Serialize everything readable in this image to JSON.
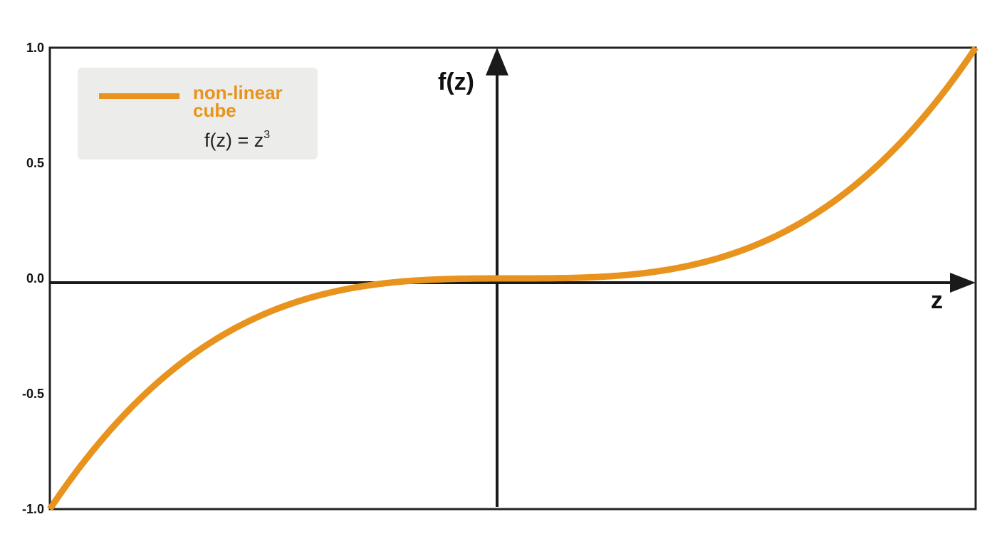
{
  "chart_data": {
    "type": "line",
    "title": "",
    "xlabel": "z",
    "ylabel": "f(z)",
    "ylim": [
      -1.0,
      1.0
    ],
    "xlim": [
      -1.0,
      1.0
    ],
    "y_ticks": [
      "1.0",
      "0.5",
      "0.0",
      "-0.5",
      "-1.0"
    ],
    "y_tick_values": [
      1.0,
      0.5,
      0.0,
      -0.5,
      -1.0
    ],
    "grid": false,
    "legend_position": "top-left",
    "series": [
      {
        "name": "non-linear cube",
        "function": "z^3",
        "color": "#E8931E",
        "x": [
          -1.0,
          -0.75,
          -0.5,
          -0.25,
          0.0,
          0.25,
          0.5,
          0.75,
          1.0
        ],
        "y": [
          -1.0,
          -0.422,
          -0.125,
          -0.016,
          0.0,
          0.016,
          0.125,
          0.422,
          1.0
        ]
      }
    ]
  },
  "legend": {
    "label_line1": "non-linear",
    "label_line2": "cube",
    "equation_base": "f(z) = z",
    "equation_exp": "3"
  },
  "colors": {
    "curve": "#E8931E",
    "axis": "#1a1a1a",
    "legend_bg": "#ECECEA"
  }
}
